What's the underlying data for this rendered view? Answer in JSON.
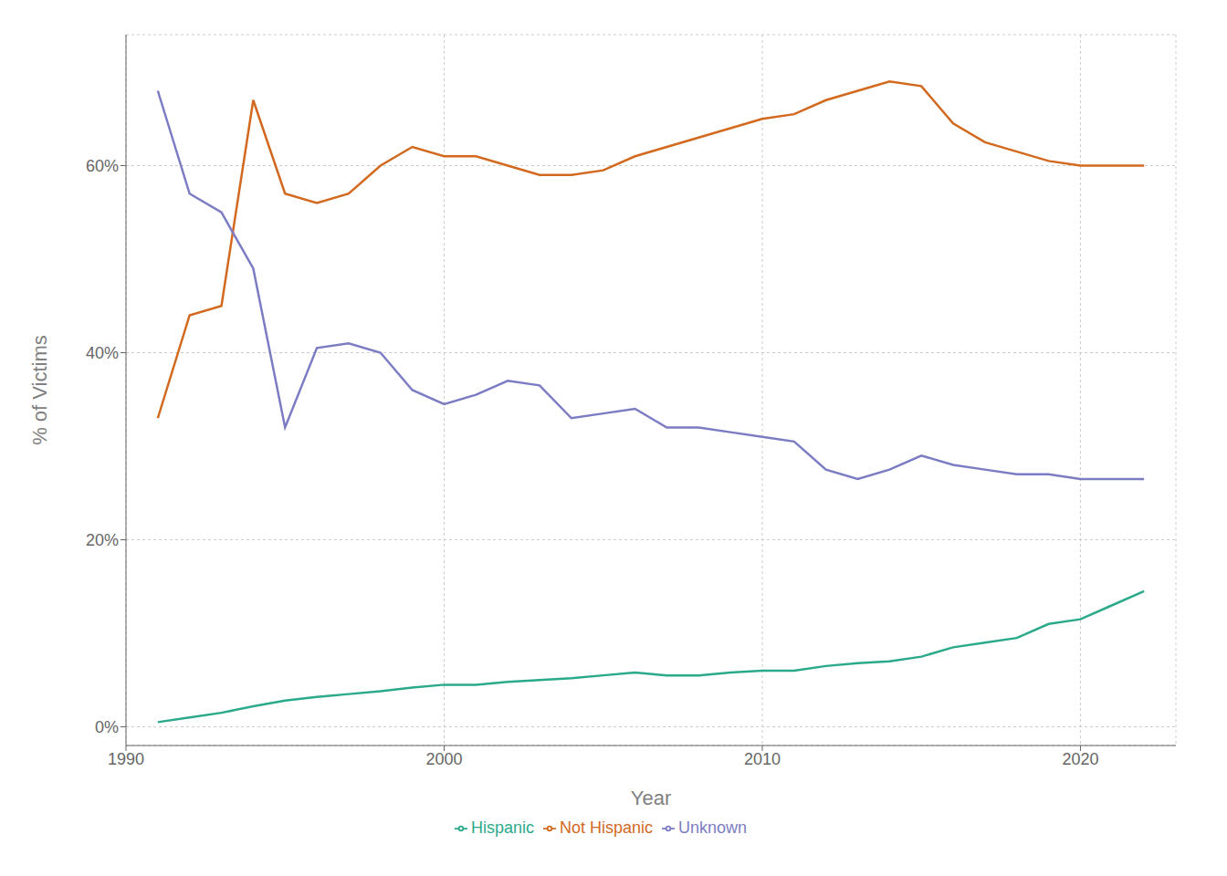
{
  "chart_data": {
    "type": "line",
    "x": [
      1991,
      1992,
      1993,
      1994,
      1995,
      1996,
      1997,
      1998,
      1999,
      2000,
      2001,
      2002,
      2003,
      2004,
      2005,
      2006,
      2007,
      2008,
      2009,
      2010,
      2011,
      2012,
      2013,
      2014,
      2015,
      2016,
      2017,
      2018,
      2019,
      2020,
      2021,
      2022
    ],
    "series": [
      {
        "name": "Hispanic",
        "color": "#2aaa8a",
        "values": [
          0.5,
          1.0,
          1.5,
          2.2,
          2.8,
          3.2,
          3.5,
          3.8,
          4.2,
          4.5,
          4.5,
          4.8,
          5.0,
          5.2,
          5.5,
          5.8,
          5.5,
          5.5,
          5.8,
          6.0,
          6.0,
          6.5,
          6.8,
          7.0,
          7.5,
          8.5,
          9.0,
          9.5,
          11.0,
          11.5,
          13.0,
          14.5
        ]
      },
      {
        "name": "Not Hispanic",
        "color": "#d2691e",
        "values": [
          33.0,
          44.0,
          45.0,
          67.0,
          57.0,
          56.0,
          57.0,
          60.0,
          62.0,
          61.0,
          61.0,
          60.0,
          59.0,
          59.0,
          59.5,
          61.0,
          62.0,
          63.0,
          64.0,
          65.0,
          65.5,
          67.0,
          68.0,
          69.0,
          68.5,
          64.5,
          62.5,
          61.5,
          60.5,
          60.0,
          60.0,
          60.0
        ]
      },
      {
        "name": "Unknown",
        "color": "#7b7cc4",
        "values": [
          68.0,
          57.0,
          55.0,
          49.0,
          32.0,
          40.5,
          41.0,
          40.0,
          36.0,
          34.5,
          35.5,
          37.0,
          36.5,
          33.0,
          33.5,
          34.0,
          32.0,
          32.0,
          31.5,
          31.0,
          30.5,
          27.5,
          26.5,
          27.5,
          29.0,
          28.0,
          27.5,
          27.0,
          27.0,
          26.5,
          26.5,
          26.5
        ]
      }
    ],
    "xlabel": "Year",
    "ylabel": "% of Victims",
    "xlim": [
      1990,
      2023
    ],
    "xticks": [
      1990,
      2000,
      2010,
      2020
    ],
    "ylim": [
      -2,
      74
    ],
    "yticks": [
      {
        "value": 0,
        "label": "0%"
      },
      {
        "value": 20,
        "label": "20%"
      },
      {
        "value": 40,
        "label": "40%"
      },
      {
        "value": 60,
        "label": "60%"
      }
    ],
    "grid": true,
    "legend": "bottom"
  }
}
